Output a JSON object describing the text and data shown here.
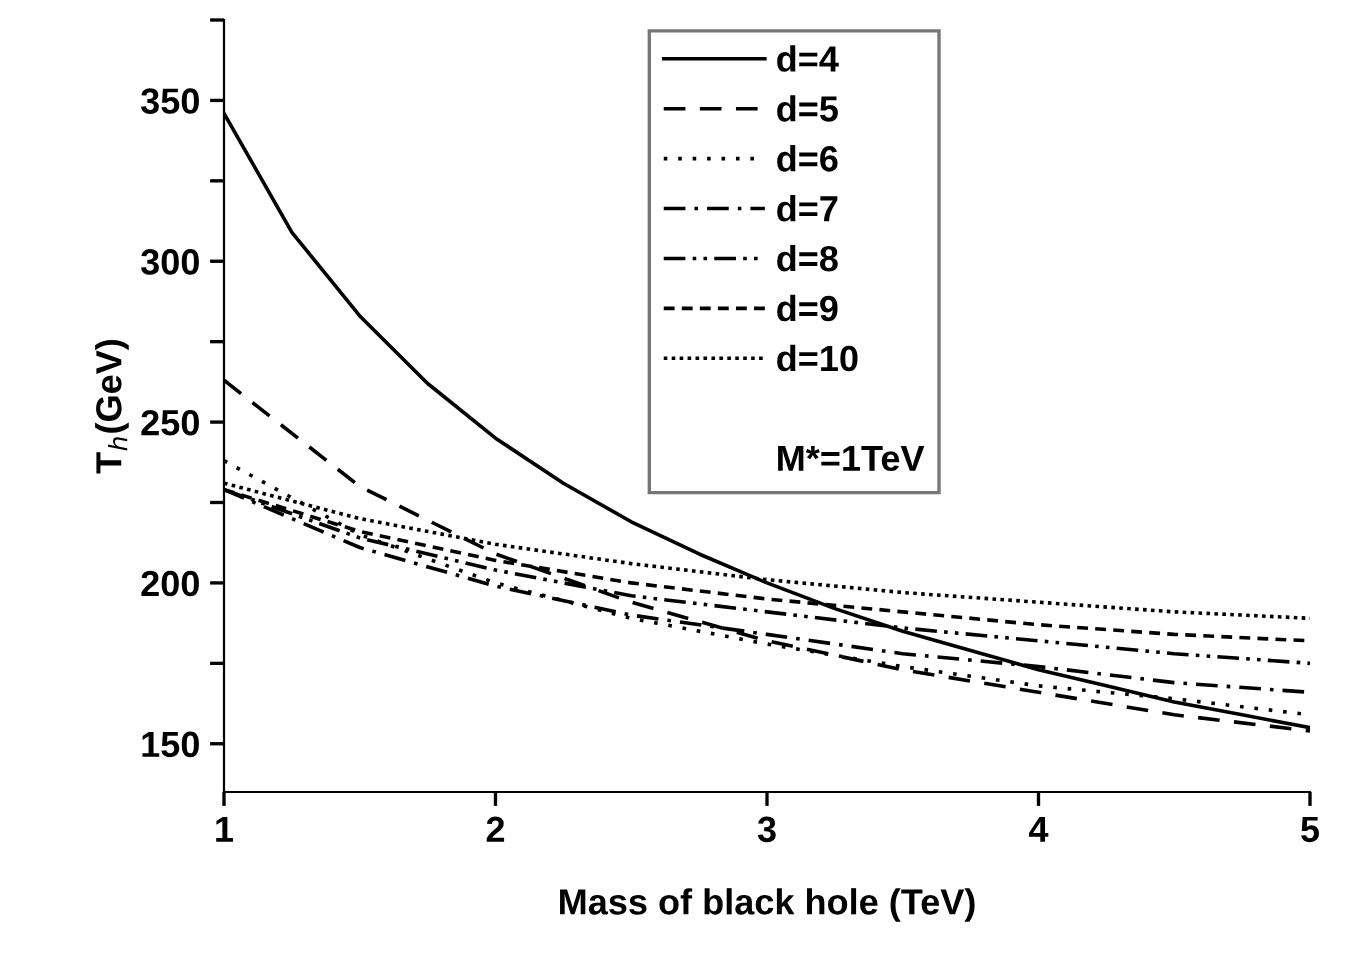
{
  "chart_data": {
    "type": "line",
    "xlabel": "Mass of black hole (TeV)",
    "ylabel": "T$_{h}$(GeV)",
    "xlim": [
      1,
      5
    ],
    "xticks": [
      1,
      2,
      3,
      4,
      5
    ],
    "ylim": [
      135,
      375
    ],
    "yticks": [
      150,
      {
        "value": 175,
        "label": null
      },
      200,
      {
        "value": 225,
        "label": null
      },
      250,
      {
        "value": 275,
        "label": null
      },
      300,
      {
        "value": 325,
        "label": null
      },
      350,
      {
        "value": 375,
        "label": null
      }
    ],
    "grid": false,
    "legend": "top",
    "annotations": [
      "M*=1TeV"
    ],
    "series": [
      {
        "name": "d=4",
        "color": "#000000",
        "line_style": "solid",
        "x": [
          1,
          1.25,
          1.5,
          1.75,
          2,
          2.25,
          2.5,
          2.75,
          3,
          3.25,
          3.5,
          3.75,
          4,
          4.25,
          4.5,
          4.75,
          5
        ],
        "values": [
          346,
          309,
          283,
          262,
          245,
          231,
          219,
          209,
          200,
          192,
          185,
          179,
          173,
          168,
          163,
          159,
          155
        ]
      },
      {
        "name": "d=5",
        "color": "#000000",
        "line_style": "dashed",
        "x": [
          1,
          1.5,
          2,
          2.5,
          3,
          3.5,
          4,
          4.5,
          5
        ],
        "values": [
          263,
          230,
          209,
          194,
          182,
          173,
          166,
          159,
          154
        ]
      },
      {
        "name": "d=6",
        "color": "#000000",
        "line_style": "dotted",
        "x": [
          1,
          1.5,
          2,
          2.5,
          3,
          3.5,
          4,
          4.5,
          5
        ],
        "values": [
          238,
          215,
          200,
          189,
          181,
          174,
          168,
          164,
          159
        ]
      },
      {
        "name": "d=7",
        "color": "#000000",
        "line_style": "dashdot",
        "x": [
          1,
          1.5,
          2,
          2.5,
          3,
          3.5,
          4,
          4.5,
          5
        ],
        "values": [
          229,
          211,
          199,
          190,
          184,
          178,
          174,
          169,
          166
        ]
      },
      {
        "name": "d=8",
        "color": "#000000",
        "line_style": "dashdotdot",
        "x": [
          1,
          1.5,
          2,
          2.5,
          3,
          3.5,
          4,
          4.5,
          5
        ],
        "values": [
          229,
          214,
          204,
          196,
          191,
          186,
          182,
          178,
          175
        ]
      },
      {
        "name": "d=9",
        "color": "#000000",
        "line_style": "shortdash",
        "x": [
          1,
          1.5,
          2,
          2.5,
          3,
          3.5,
          4,
          4.5,
          5
        ],
        "values": [
          229,
          216,
          207,
          200,
          195,
          191,
          187,
          184,
          182
        ]
      },
      {
        "name": "d=10",
        "color": "#000000",
        "line_style": "densedot",
        "x": [
          1,
          1.5,
          2,
          2.5,
          3,
          3.5,
          4,
          4.5,
          5
        ],
        "values": [
          231,
          220,
          212,
          206,
          201,
          197,
          194,
          191,
          189
        ]
      }
    ]
  }
}
